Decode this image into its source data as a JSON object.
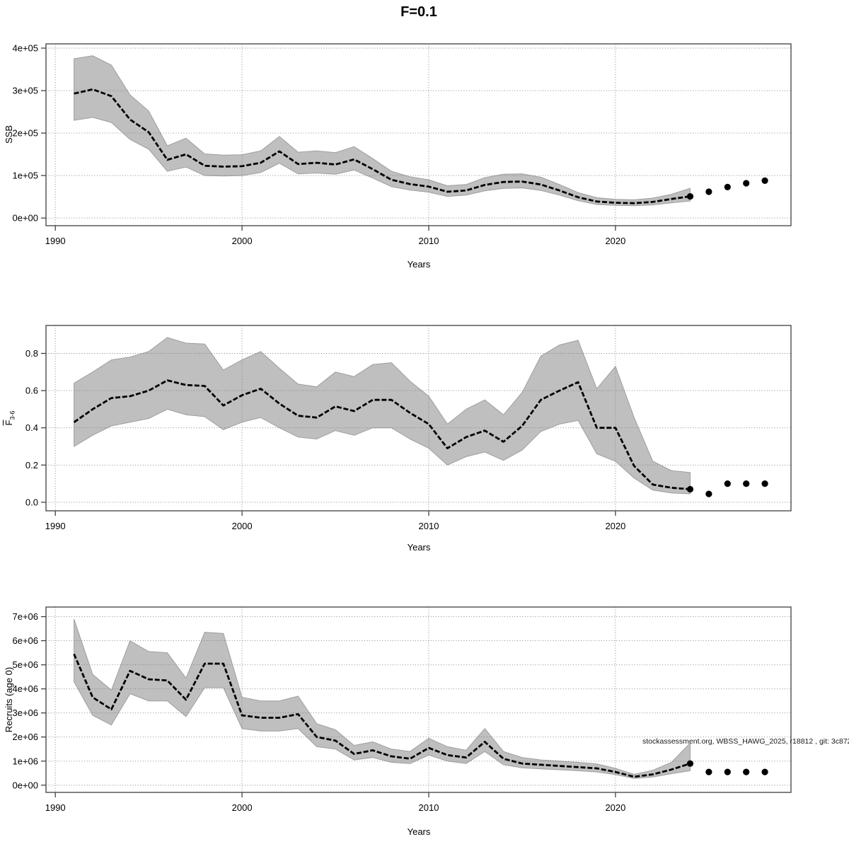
{
  "title": "F=0.1",
  "watermark": "stockassessment.org, WBSS_HAWG_2025, r18812 , git: 3c872",
  "colors": {
    "band": "#bfbfbf",
    "median_line": "#000000",
    "forecast_dot": "#000000",
    "grid": "#7a7a7a",
    "box": "#4d4d4d",
    "background": "#ffffff"
  },
  "chart_data": [
    {
      "type": "line",
      "name": "ssb",
      "title": "",
      "ylabel": "SSB",
      "xlabel": "Years",
      "legend": false,
      "grid": true,
      "x": [
        1991,
        1992,
        1993,
        1994,
        1995,
        1996,
        1997,
        1998,
        1999,
        2000,
        2001,
        2002,
        2003,
        2004,
        2005,
        2006,
        2007,
        2008,
        2009,
        2010,
        2011,
        2012,
        2013,
        2014,
        2015,
        2016,
        2017,
        2018,
        2019,
        2020,
        2021,
        2022,
        2023,
        2024
      ],
      "series": [
        {
          "name": "SSB estimate",
          "values": [
            293000,
            303000,
            287000,
            232000,
            202000,
            137000,
            150000,
            123000,
            121000,
            122000,
            130000,
            157000,
            127000,
            130000,
            126000,
            138000,
            115000,
            90000,
            80000,
            74000,
            62000,
            65000,
            78000,
            85000,
            86000,
            79000,
            65000,
            49000,
            39000,
            36000,
            35000,
            38000,
            45000,
            51000
          ]
        }
      ],
      "band": {
        "name": "confidence interval",
        "lower": [
          230000,
          237000,
          225000,
          185000,
          162000,
          110000,
          120000,
          100000,
          99000,
          100000,
          107000,
          129000,
          104000,
          106000,
          103000,
          113000,
          94000,
          74000,
          66000,
          61000,
          51000,
          54000,
          64000,
          70000,
          71000,
          65000,
          54000,
          41000,
          32000,
          30000,
          29000,
          31000,
          36000,
          40000
        ],
        "upper": [
          375000,
          382000,
          360000,
          290000,
          252000,
          170000,
          188000,
          151000,
          148000,
          149000,
          158000,
          192000,
          155000,
          158000,
          154000,
          168000,
          140000,
          110000,
          97000,
          90000,
          76000,
          79000,
          95000,
          103000,
          104000,
          96000,
          79000,
          60000,
          48000,
          44000,
          43000,
          47000,
          56000,
          70000
        ]
      },
      "forecast": {
        "name": "forecast points",
        "x": [
          2024,
          2025,
          2026,
          2027,
          2028
        ],
        "values": [
          51000,
          62000,
          73000,
          82000,
          88000
        ]
      },
      "xticks": [
        1990,
        2000,
        2010,
        2020
      ],
      "ytick_values": [
        0,
        100000,
        200000,
        300000,
        400000
      ],
      "ytick_labels": [
        "0e+00",
        "1e+05",
        "2e+05",
        "3e+05",
        "4e+05"
      ],
      "xlim": [
        1989.5,
        2029.4
      ],
      "ylim": [
        -18000,
        410000
      ]
    },
    {
      "type": "line",
      "name": "fbar",
      "title": "",
      "ylabel": "F3-6",
      "ylabel_main": "F",
      "ylabel_sub": "3-6",
      "xlabel": "Years",
      "legend": false,
      "grid": true,
      "x": [
        1991,
        1992,
        1993,
        1994,
        1995,
        1996,
        1997,
        1998,
        1999,
        2000,
        2001,
        2002,
        2003,
        2004,
        2005,
        2006,
        2007,
        2008,
        2009,
        2010,
        2011,
        2012,
        2013,
        2014,
        2015,
        2016,
        2017,
        2018,
        2019,
        2020,
        2021,
        2022,
        2023,
        2024
      ],
      "series": [
        {
          "name": "F estimate",
          "values": [
            0.43,
            0.5,
            0.56,
            0.57,
            0.6,
            0.655,
            0.63,
            0.625,
            0.52,
            0.575,
            0.61,
            0.53,
            0.465,
            0.455,
            0.515,
            0.49,
            0.55,
            0.55,
            0.48,
            0.42,
            0.29,
            0.35,
            0.385,
            0.325,
            0.41,
            0.55,
            0.6,
            0.645,
            0.4,
            0.4,
            0.195,
            0.095,
            0.078,
            0.07
          ]
        }
      ],
      "band": {
        "name": "confidence interval",
        "lower": [
          0.3,
          0.36,
          0.41,
          0.43,
          0.45,
          0.5,
          0.47,
          0.46,
          0.39,
          0.43,
          0.455,
          0.4,
          0.35,
          0.34,
          0.385,
          0.36,
          0.4,
          0.4,
          0.34,
          0.29,
          0.2,
          0.245,
          0.27,
          0.225,
          0.28,
          0.38,
          0.42,
          0.44,
          0.26,
          0.22,
          0.13,
          0.065,
          0.05,
          0.045
        ],
        "upper": [
          0.64,
          0.7,
          0.765,
          0.78,
          0.81,
          0.885,
          0.855,
          0.85,
          0.71,
          0.765,
          0.81,
          0.72,
          0.635,
          0.62,
          0.7,
          0.675,
          0.74,
          0.75,
          0.65,
          0.57,
          0.42,
          0.5,
          0.55,
          0.47,
          0.59,
          0.785,
          0.845,
          0.87,
          0.61,
          0.73,
          0.455,
          0.22,
          0.17,
          0.16
        ]
      },
      "forecast": {
        "name": "forecast points",
        "x": [
          2024,
          2025,
          2026,
          2027,
          2028
        ],
        "values": [
          0.07,
          0.045,
          0.1,
          0.1,
          0.1
        ]
      },
      "xticks": [
        1990,
        2000,
        2010,
        2020
      ],
      "ytick_values": [
        0.0,
        0.2,
        0.4,
        0.6,
        0.8
      ],
      "ytick_labels": [
        "0.0",
        "0.2",
        "0.4",
        "0.6",
        "0.8"
      ],
      "xlim": [
        1989.5,
        2029.4
      ],
      "ylim": [
        -0.046,
        0.95
      ]
    },
    {
      "type": "line",
      "name": "recruits",
      "title": "",
      "ylabel": "Recruits (age 0)",
      "xlabel": "Years",
      "legend": false,
      "grid": true,
      "x": [
        1991,
        1992,
        1993,
        1994,
        1995,
        1996,
        1997,
        1998,
        1999,
        2000,
        2001,
        2002,
        2003,
        2004,
        2005,
        2006,
        2007,
        2008,
        2009,
        2010,
        2011,
        2012,
        2013,
        2014,
        2015,
        2016,
        2017,
        2018,
        2019,
        2020,
        2021,
        2022,
        2023,
        2024
      ],
      "series": [
        {
          "name": "Recruits estimate",
          "values": [
            5450000,
            3650000,
            3150000,
            4750000,
            4400000,
            4350000,
            3550000,
            5050000,
            5050000,
            2900000,
            2800000,
            2800000,
            2950000,
            2000000,
            1850000,
            1300000,
            1450000,
            1200000,
            1100000,
            1550000,
            1250000,
            1150000,
            1800000,
            1100000,
            900000,
            850000,
            800000,
            750000,
            700000,
            550000,
            350000,
            450000,
            650000,
            900000
          ]
        }
      ],
      "band": {
        "name": "confidence interval",
        "lower": [
          4300000,
          2900000,
          2500000,
          3800000,
          3500000,
          3500000,
          2850000,
          4050000,
          4050000,
          2350000,
          2250000,
          2250000,
          2350000,
          1600000,
          1500000,
          1050000,
          1150000,
          950000,
          900000,
          1250000,
          1000000,
          900000,
          1400000,
          850000,
          720000,
          680000,
          640000,
          600000,
          550000,
          440000,
          280000,
          340000,
          480000,
          600000
        ],
        "upper": [
          6900000,
          4600000,
          3950000,
          6000000,
          5550000,
          5500000,
          4450000,
          6350000,
          6300000,
          3650000,
          3500000,
          3500000,
          3700000,
          2550000,
          2300000,
          1650000,
          1800000,
          1500000,
          1400000,
          1950000,
          1600000,
          1450000,
          2350000,
          1400000,
          1150000,
          1050000,
          1000000,
          950000,
          880000,
          700000,
          450000,
          620000,
          950000,
          1750000
        ]
      },
      "forecast": {
        "name": "forecast points",
        "x": [
          2024,
          2025,
          2026,
          2027,
          2028
        ],
        "values": [
          900000,
          550000,
          550000,
          550000,
          550000
        ]
      },
      "xticks": [
        1990,
        2000,
        2010,
        2020
      ],
      "ytick_values": [
        0,
        1000000,
        2000000,
        3000000,
        4000000,
        5000000,
        6000000,
        7000000
      ],
      "ytick_labels": [
        "0e+00",
        "1e+06",
        "2e+06",
        "3e+06",
        "4e+06",
        "5e+06",
        "6e+06",
        "7e+06"
      ],
      "xlim": [
        1989.5,
        2029.4
      ],
      "ylim": [
        -300000,
        7400000
      ]
    }
  ]
}
